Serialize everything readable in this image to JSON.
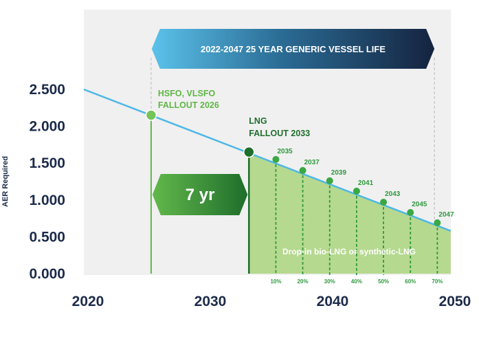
{
  "chart_data": {
    "type": "line",
    "ylabel": "AER Required",
    "xlim": [
      2020,
      2050
    ],
    "ylim": [
      0,
      2.5
    ],
    "x_ticks": [
      "2020",
      "2030",
      "2040",
      "2050"
    ],
    "y_ticks": [
      "0.000",
      "0.500",
      "1.000",
      "1.500",
      "2.000",
      "2.500"
    ],
    "series": [
      {
        "x": [
          2020,
          2050
        ],
        "y": [
          2.5,
          0.58
        ]
      }
    ],
    "banner": {
      "label": "2022-2047 25 YEAR GENERIC VESSEL LIFE",
      "start": 2026,
      "end": 2049
    },
    "fallouts": [
      {
        "label_line1": "HSFO, VLSFO",
        "label_line2": "FALLOUT 2026",
        "x": 2025.5,
        "y": 2.15,
        "style": "light"
      },
      {
        "label_line1": "LNG",
        "label_line2": "FALLOUT 2033",
        "x": 2033.5,
        "y": 1.65,
        "style": "dark"
      }
    ],
    "gap_label": "7 yr",
    "milestones": [
      {
        "year": "2035",
        "pct": "10%",
        "x": 2035.7,
        "y": 1.55
      },
      {
        "year": "2037",
        "pct": "20%",
        "x": 2037.9,
        "y": 1.4
      },
      {
        "year": "2039",
        "pct": "30%",
        "x": 2040.1,
        "y": 1.26
      },
      {
        "year": "2041",
        "pct": "40%",
        "x": 2042.3,
        "y": 1.12
      },
      {
        "year": "2043",
        "pct": "50%",
        "x": 2044.5,
        "y": 0.97
      },
      {
        "year": "2045",
        "pct": "60%",
        "x": 2046.7,
        "y": 0.83
      },
      {
        "year": "2047",
        "pct": "70%",
        "x": 2048.9,
        "y": 0.69
      }
    ],
    "region_label": "Drop-in bio-LNG or synthetic-LNG",
    "colors": {
      "line": "#4db8e6",
      "light_green": "#5fb545",
      "dark_green": "#1f6e2c",
      "fill": "#b5d98f",
      "navy": "#1c2b4a",
      "background": "#f0f0f0"
    }
  }
}
